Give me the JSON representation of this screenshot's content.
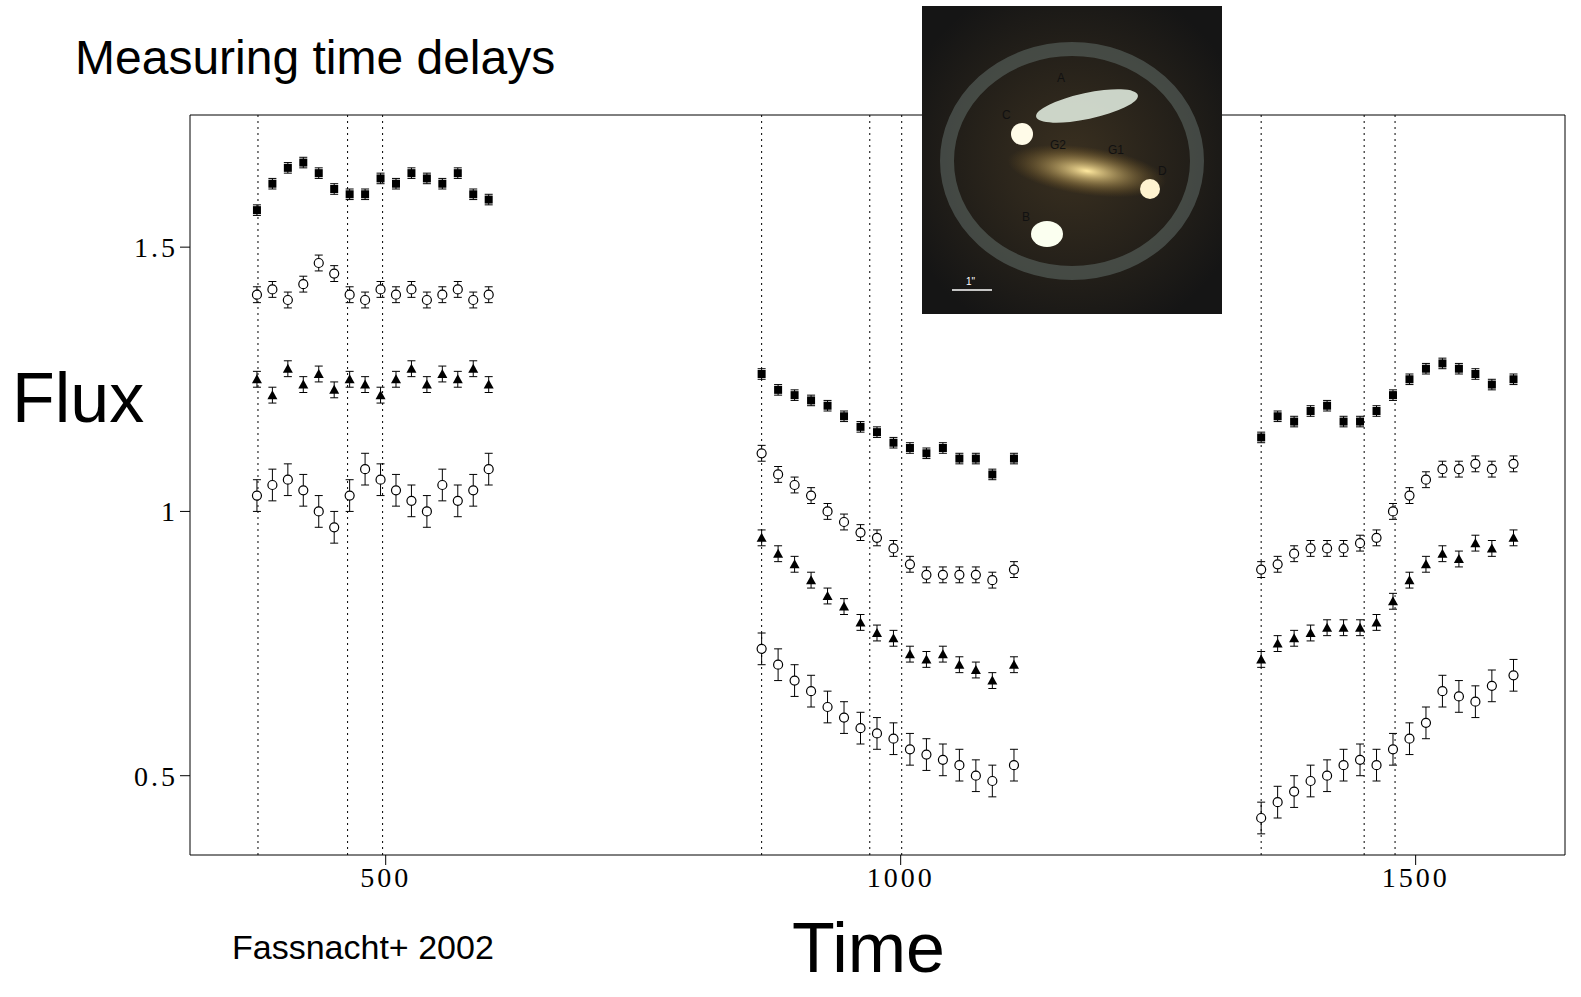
{
  "title": "Measuring time delays",
  "citation": "Fassnacht+ 2002",
  "chart_data": {
    "type": "scatter",
    "x_label": "Time",
    "y_label": "Flux",
    "xlim": [
      310,
      1645
    ],
    "ylim": [
      0.35,
      1.75
    ],
    "xticks": [
      500,
      1000,
      1500
    ],
    "yticks": [
      0.5,
      1,
      1.5
    ],
    "x": [
      375,
      390,
      405,
      420,
      435,
      450,
      465,
      480,
      495,
      510,
      525,
      540,
      555,
      570,
      585,
      600,
      865,
      881,
      897,
      913,
      929,
      945,
      961,
      977,
      993,
      1009,
      1025,
      1041,
      1057,
      1073,
      1089,
      1110,
      1350,
      1366,
      1382,
      1398,
      1414,
      1430,
      1446,
      1462,
      1478,
      1494,
      1510,
      1526,
      1542,
      1558,
      1574,
      1595
    ],
    "series": [
      {
        "color": "#000000",
        "marker": "square",
        "error": 0.01,
        "values": [
          1.57,
          1.62,
          1.65,
          1.66,
          1.64,
          1.61,
          1.6,
          1.6,
          1.63,
          1.62,
          1.64,
          1.63,
          1.62,
          1.64,
          1.6,
          1.59,
          1.26,
          1.23,
          1.22,
          1.21,
          1.2,
          1.18,
          1.16,
          1.15,
          1.13,
          1.12,
          1.11,
          1.12,
          1.1,
          1.1,
          1.07,
          1.1,
          1.14,
          1.18,
          1.17,
          1.19,
          1.2,
          1.17,
          1.17,
          1.19,
          1.22,
          1.25,
          1.27,
          1.28,
          1.27,
          1.26,
          1.24,
          1.25
        ]
      },
      {
        "color": "#000000",
        "marker": "circle",
        "error": 0.015,
        "values": [
          1.41,
          1.42,
          1.4,
          1.43,
          1.47,
          1.45,
          1.41,
          1.4,
          1.42,
          1.41,
          1.42,
          1.4,
          1.41,
          1.42,
          1.4,
          1.41,
          1.11,
          1.07,
          1.05,
          1.03,
          1.0,
          0.98,
          0.96,
          0.95,
          0.93,
          0.9,
          0.88,
          0.88,
          0.88,
          0.88,
          0.87,
          0.89,
          0.89,
          0.9,
          0.92,
          0.93,
          0.93,
          0.93,
          0.94,
          0.95,
          1.0,
          1.03,
          1.06,
          1.08,
          1.08,
          1.09,
          1.08,
          1.09
        ]
      },
      {
        "color": "#000000",
        "marker": "triangle",
        "error": 0.015,
        "values": [
          1.25,
          1.22,
          1.27,
          1.24,
          1.26,
          1.23,
          1.25,
          1.24,
          1.22,
          1.25,
          1.27,
          1.24,
          1.26,
          1.25,
          1.27,
          1.24,
          0.95,
          0.92,
          0.9,
          0.87,
          0.84,
          0.82,
          0.79,
          0.77,
          0.76,
          0.73,
          0.72,
          0.73,
          0.71,
          0.7,
          0.68,
          0.71,
          0.72,
          0.75,
          0.76,
          0.77,
          0.78,
          0.78,
          0.78,
          0.79,
          0.83,
          0.87,
          0.9,
          0.92,
          0.91,
          0.94,
          0.93,
          0.95
        ]
      },
      {
        "color": "#000000",
        "marker": "circle",
        "error": 0.03,
        "values": [
          1.03,
          1.05,
          1.06,
          1.04,
          1.0,
          0.97,
          1.03,
          1.08,
          1.06,
          1.04,
          1.02,
          1.0,
          1.05,
          1.02,
          1.04,
          1.08,
          0.74,
          0.71,
          0.68,
          0.66,
          0.63,
          0.61,
          0.59,
          0.58,
          0.57,
          0.55,
          0.54,
          0.53,
          0.52,
          0.5,
          0.49,
          0.52,
          0.42,
          0.45,
          0.47,
          0.49,
          0.5,
          0.52,
          0.53,
          0.52,
          0.55,
          0.57,
          0.6,
          0.66,
          0.65,
          0.64,
          0.67,
          0.69
        ]
      }
    ],
    "vertical_lines": [
      376,
      463,
      497,
      865,
      970,
      1001,
      1350,
      1450,
      1480
    ]
  },
  "inset": {
    "labels": [
      "A",
      "C",
      "G2",
      "G1",
      "D",
      "B"
    ],
    "scale_bar": "1\""
  }
}
